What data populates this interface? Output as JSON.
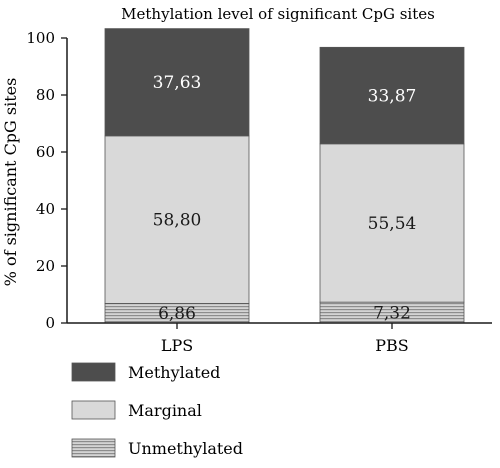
{
  "chart_data": {
    "type": "bar",
    "stacked": true,
    "title": "Methylation level of significant CpG sites",
    "xlabel": "",
    "ylabel": "% of significant CpG sites",
    "ylim": [
      0,
      100
    ],
    "yticks": [
      0,
      20,
      40,
      60,
      80,
      100
    ],
    "categories": [
      "LPS",
      "PBS"
    ],
    "series": [
      {
        "name": "Unmethylated",
        "values": [
          6.86,
          7.32
        ],
        "labels": [
          "6,86",
          "7,32"
        ],
        "color": "#bdbdbd",
        "pattern": "horizontal-lines"
      },
      {
        "name": "Marginal",
        "values": [
          58.8,
          55.54
        ],
        "labels": [
          "58,80",
          "55,54"
        ],
        "color": "#d9d9d9"
      },
      {
        "name": "Methylated",
        "values": [
          37.63,
          33.87
        ],
        "labels": [
          "37,63",
          "33,87"
        ],
        "color": "#4d4d4d"
      }
    ],
    "legend_order": [
      "Methylated",
      "Marginal",
      "Unmethylated"
    ],
    "legend_position": "bottom-left",
    "grid": false
  }
}
